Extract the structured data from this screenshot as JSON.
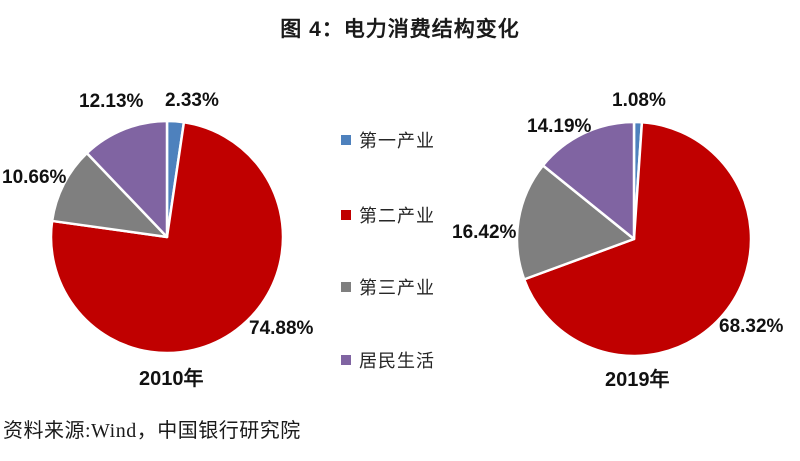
{
  "title": "图 4：电力消费结构变化",
  "source": "资料来源:Wind，中国银行研究院",
  "colors": {
    "primary_industry": "#4E81BD",
    "secondary_industry": "#C00000",
    "tertiary_industry": "#7F7F7F",
    "residential": "#8064A2"
  },
  "legend": [
    {
      "key": "primary-industry",
      "label": "第一产业",
      "color": "#4E81BD"
    },
    {
      "key": "secondary-industry",
      "label": "第二产业",
      "color": "#C00000"
    },
    {
      "key": "tertiary-industry",
      "label": "第三产业",
      "color": "#7F7F7F"
    },
    {
      "key": "residential-life",
      "label": "居民生活",
      "color": "#8064A2"
    }
  ],
  "chart_data": [
    {
      "type": "pie",
      "title": "2010年",
      "categories": [
        "第一产业",
        "第二产业",
        "第三产业",
        "居民生活"
      ],
      "values": [
        2.33,
        74.88,
        10.66,
        12.13
      ],
      "value_labels": [
        "2.33%",
        "74.88%",
        "10.66%",
        "12.13%"
      ],
      "colors": [
        "#4E81BD",
        "#C00000",
        "#7F7F7F",
        "#8064A2"
      ],
      "start_angle_deg": 0,
      "direction": "clockwise",
      "label_position": "outside"
    },
    {
      "type": "pie",
      "title": "2019年",
      "categories": [
        "第一产业",
        "第二产业",
        "第三产业",
        "居民生活"
      ],
      "values": [
        1.08,
        68.32,
        16.42,
        14.19
      ],
      "value_labels": [
        "1.08%",
        "68.32%",
        "16.42%",
        "14.19%"
      ],
      "colors": [
        "#4E81BD",
        "#C00000",
        "#7F7F7F",
        "#8064A2"
      ],
      "start_angle_deg": 0,
      "direction": "clockwise",
      "label_position": "outside"
    }
  ],
  "layout_hints": {
    "legend_position": "center-between-pies",
    "grid": false
  }
}
